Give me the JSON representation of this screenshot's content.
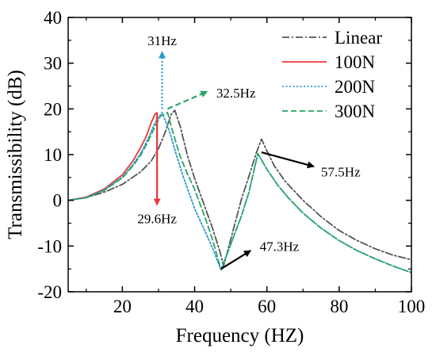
{
  "chart_data": {
    "type": "line",
    "title": "",
    "xlabel": "Frequency (HZ)",
    "ylabel": "Transmissibility (dB)",
    "xlim": [
      5,
      100
    ],
    "ylim": [
      -20,
      40
    ],
    "xticks": [
      20,
      40,
      60,
      80,
      100
    ],
    "yticks": [
      -20,
      -10,
      0,
      10,
      20,
      30,
      40
    ],
    "grid": false,
    "legend_position": "top-right",
    "series": [
      {
        "name": "Linear",
        "color": "#555555",
        "style": "dashdot",
        "x": [
          5,
          10,
          15,
          20,
          25,
          28,
          30,
          32,
          33.5,
          34.5,
          36,
          38,
          40,
          43,
          45,
          47,
          48,
          50,
          53,
          55,
          57,
          58.5,
          60,
          62,
          65,
          70,
          75,
          80,
          85,
          90,
          95,
          100
        ],
        "y": [
          0,
          0.6,
          1.8,
          3.5,
          6.2,
          8.6,
          11.3,
          15.2,
          18.8,
          19.7,
          16.2,
          9.8,
          4.8,
          -1.8,
          -6.2,
          -11.2,
          -14.4,
          -8.5,
          0.4,
          5.2,
          10.2,
          13.4,
          10.8,
          7.6,
          4.2,
          0,
          -3.6,
          -6.6,
          -8.8,
          -10.6,
          -12,
          -13
        ]
      },
      {
        "name": "100N",
        "color": "#e8373a",
        "style": "solid",
        "x": [
          5,
          10,
          15,
          20,
          23,
          25,
          26.5,
          28,
          29,
          29.6
        ],
        "y": [
          0,
          0.7,
          2.5,
          5.6,
          8.7,
          11.5,
          13.8,
          17,
          18.8,
          19.2
        ]
      },
      {
        "name": "200N",
        "color": "#2b96d3",
        "style": "dotted",
        "x": [
          5,
          10,
          15,
          20,
          23,
          25,
          27,
          29,
          31,
          33,
          35,
          37,
          40,
          43,
          45,
          47.3,
          50,
          53,
          55,
          57.5,
          60,
          63,
          66,
          70,
          75,
          80,
          85,
          90,
          95,
          100
        ],
        "y": [
          0,
          0.6,
          2.3,
          5.1,
          7.9,
          10.2,
          13.3,
          16.9,
          19.2,
          15.2,
          9.8,
          4.8,
          -1.8,
          -7,
          -10.5,
          -15.2,
          -9.6,
          -3.3,
          1.7,
          10.2,
          6.8,
          3.3,
          0.5,
          -2.8,
          -6.1,
          -8.8,
          -11,
          -12.8,
          -14.4,
          -15.8
        ]
      },
      {
        "name": "300N",
        "color": "#27a567",
        "style": "dashed",
        "x": [
          5,
          10,
          15,
          20,
          23,
          25,
          27,
          29,
          30.5,
          32.5,
          34,
          36,
          38,
          40,
          43,
          45,
          47.3,
          50,
          53,
          55,
          57.5,
          60,
          63,
          66,
          70,
          75,
          80,
          85,
          90,
          95,
          100
        ],
        "y": [
          0,
          0.6,
          2.2,
          4.9,
          7.6,
          9.8,
          12.7,
          16.1,
          18.4,
          19.2,
          14.8,
          9.6,
          5.8,
          2.4,
          -4,
          -8.7,
          -15.2,
          -9.6,
          -3.3,
          1.7,
          10.2,
          6.8,
          3.3,
          0.5,
          -2.8,
          -6.1,
          -8.8,
          -11,
          -12.8,
          -14.4,
          -15.8
        ]
      }
    ],
    "annotations": [
      {
        "text": "31Hz",
        "arrow_from": [
          31,
          20
        ],
        "arrow_to": [
          31,
          32.5
        ],
        "label_at": [
          31,
          35
        ],
        "color": "#2b96d3",
        "style": "dotted"
      },
      {
        "text": "32.5Hz",
        "arrow_from": [
          32.5,
          20
        ],
        "arrow_to": [
          43.5,
          23.8
        ],
        "label_at": [
          46,
          23.5
        ],
        "color": "#27a567",
        "style": "dashed"
      },
      {
        "text": "29.6Hz",
        "arrow_from": [
          29.6,
          19
        ],
        "arrow_to": [
          29.6,
          -1
        ],
        "label_at": [
          29.6,
          -4
        ],
        "color": "#e8373a",
        "style": "solid"
      },
      {
        "text": "47.3Hz",
        "arrow_from": [
          47.3,
          -15
        ],
        "arrow_to": [
          55.5,
          -11
        ],
        "label_at": [
          58,
          -10
        ],
        "color": "#000000",
        "style": "solid"
      },
      {
        "text": "57.5Hz",
        "arrow_from": [
          58.5,
          10.5
        ],
        "arrow_to": [
          73,
          7.4
        ],
        "label_at": [
          75,
          6.3
        ],
        "color": "#000000",
        "style": "solid"
      }
    ]
  }
}
